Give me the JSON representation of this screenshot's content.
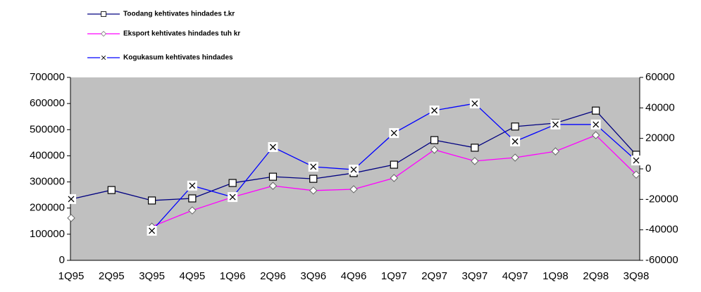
{
  "chart_data": {
    "type": "line",
    "categories": [
      "1Q95",
      "2Q95",
      "3Q95",
      "4Q95",
      "1Q96",
      "2Q96",
      "3Q96",
      "4Q96",
      "1Q97",
      "2Q97",
      "3Q97",
      "4Q97",
      "1Q98",
      "2Q98",
      "3Q98"
    ],
    "series": [
      {
        "name": "Toodang kehtivates hindades t.kr",
        "color": "#000080",
        "marker": "square",
        "values": [
          234000,
          269000,
          229000,
          237000,
          296000,
          320000,
          312000,
          334000,
          366000,
          460000,
          431000,
          512000,
          525000,
          573000,
          404000
        ]
      },
      {
        "name": "Eksport kehtivates hindades tuh kr",
        "color": "#ff00ff",
        "marker": "diamond",
        "values": [
          162000,
          null,
          129000,
          191000,
          242000,
          285000,
          267000,
          272000,
          315000,
          423000,
          380000,
          393000,
          417000,
          479000,
          328000
        ]
      },
      {
        "name": "Kogukasum kehtivates hindades",
        "color": "#0000ff",
        "marker": "x",
        "axis": "y2",
        "values": [
          -19800,
          null,
          -40600,
          -11000,
          -18500,
          14300,
          1400,
          -500,
          23500,
          38300,
          42900,
          18000,
          29100,
          29100,
          5500
        ]
      }
    ],
    "ylim": [
      0,
      700000
    ],
    "yticks": [
      0,
      100000,
      200000,
      300000,
      400000,
      500000,
      600000,
      700000
    ],
    "y2lim": [
      -60000,
      60000
    ],
    "y2ticks": [
      -60000,
      -40000,
      -20000,
      0,
      20000,
      40000,
      60000
    ],
    "plot_background": "#c0c0c0",
    "grid": false
  }
}
